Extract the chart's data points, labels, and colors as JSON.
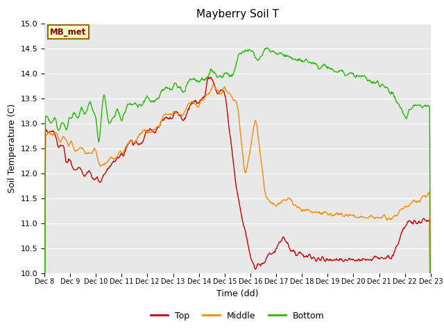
{
  "title": "Mayberry Soil T",
  "xlabel": "Time (dd)",
  "ylabel": "Soil Temperature (C)",
  "ylim": [
    10.0,
    15.0
  ],
  "yticks": [
    10.0,
    10.5,
    11.0,
    11.5,
    12.0,
    12.5,
    13.0,
    13.5,
    14.0,
    14.5,
    15.0
  ],
  "colors": {
    "top": "#cc0000",
    "middle": "#ff8800",
    "bottom": "#22bb00",
    "background": "#e8e8e8"
  },
  "legend_label": "MB_met",
  "legend_box_facecolor": "#ffffcc",
  "legend_box_edgecolor": "#996600",
  "line_width": 1.0,
  "xtick_labels": [
    "Dec 8",
    "Dec 9",
    "Dec 10",
    "Dec 11",
    "Dec 12",
    "Dec 13",
    "Dec 14",
    "Dec 15",
    "Dec 16",
    "Dec 17",
    "Dec 18",
    "Dec 19",
    "Dec 20",
    "Dec 21",
    "Dec 22",
    "Dec 23"
  ]
}
